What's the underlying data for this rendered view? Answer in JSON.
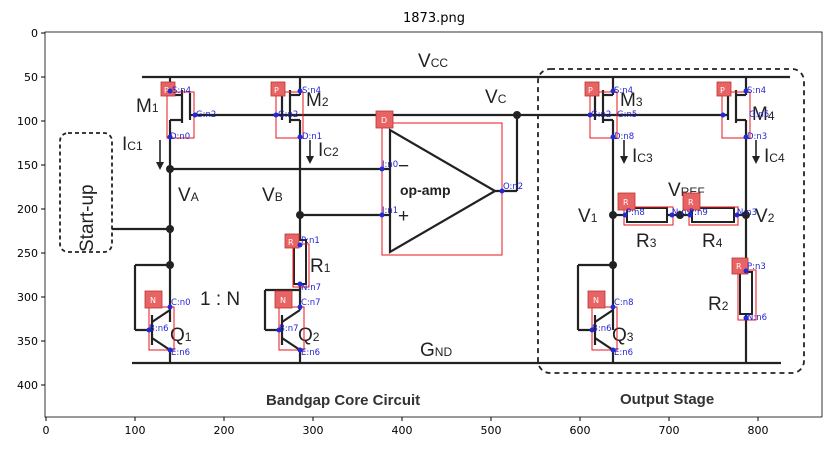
{
  "title": "1873.png",
  "axes": {
    "x_ticks": [
      "0",
      "100",
      "200",
      "300",
      "400",
      "500",
      "600",
      "700",
      "800"
    ],
    "y_ticks": [
      "0",
      "50",
      "100",
      "150",
      "200",
      "250",
      "300",
      "350",
      "400"
    ]
  },
  "circuit": {
    "rails": {
      "vcc": "V",
      "vcc_sub": "CC",
      "gnd": "G",
      "gnd_sub": "ND"
    },
    "node_labels": {
      "vc": "V",
      "vc_sub": "C",
      "va": "V",
      "va_sub": "A",
      "vb": "V",
      "vb_sub": "B",
      "v1": "V",
      "v1_sub": "1",
      "v2": "V",
      "v2_sub": "2",
      "vref": "V",
      "vref_sub": "REF"
    },
    "devices": {
      "m1": "M",
      "m1_sub": "1",
      "m2": "M",
      "m2_sub": "2",
      "m3": "M",
      "m3_sub": "3",
      "m4": "M",
      "m4_sub": "4",
      "q1": "Q",
      "q1_sub": "1",
      "q2": "Q",
      "q2_sub": "2",
      "q3": "Q",
      "q3_sub": "3",
      "r1": "R",
      "r1_sub": "1",
      "r2": "R",
      "r2_sub": "2",
      "r3": "R",
      "r3_sub": "3",
      "r4": "R",
      "r4_sub": "4"
    },
    "currents": {
      "ic1": "I",
      "ic1_sub": "C1",
      "ic2": "I",
      "ic2_sub": "C2",
      "ic3": "I",
      "ic3_sub": "C3",
      "ic4": "I",
      "ic4_sub": "C4"
    },
    "ratio": "1 : N",
    "opamp": "op-amp",
    "opamp_minus": "−",
    "opamp_plus": "+",
    "startup": "Start-up",
    "captions": {
      "core": "Bandgap Core Circuit",
      "output": "Output Stage"
    }
  },
  "annotations": {
    "badges": {
      "m1": "P",
      "m2": "P",
      "m3": "P",
      "m4": "P",
      "opamp": "D",
      "r1": "R",
      "r2": "R",
      "r3": "R",
      "r4": "R",
      "q1": "N",
      "q2": "N",
      "q3": "N"
    },
    "pins": {
      "m1_s": "S:n4",
      "m1_g": "G:n2",
      "m1_d": "D:n0",
      "m2_s": "S:n4",
      "m2_g": "G:n2",
      "m2_d": "D:n1",
      "m3_s": "S:n4",
      "m3_g": "G:n2",
      "m3_g2": "G:n5",
      "m3_d": "D:n8",
      "m4_s": "S:n4",
      "m4_g": "G:n5",
      "m4_d": "D:n3",
      "op_in0": "I:n0",
      "op_in1": "I:n1",
      "op_out": "O:n2",
      "r1_p": "P:n1",
      "r1_n": "N:n7",
      "r3_p": "P:n8",
      "r3_n": "N:n9",
      "r4_p": "P:n9",
      "r4_n": "N:n3",
      "r2_p": "P:n3",
      "r2_n": "N:n6",
      "q1_c": "C:n0",
      "q1_b": "B:n6",
      "q1_e": "E:n6",
      "q2_c": "C:n7",
      "q2_b": "B:n7",
      "q2_e": "E:n6",
      "q3_c": "C:n8",
      "q3_b": "B:n6",
      "q3_e": "E:n6"
    }
  }
}
